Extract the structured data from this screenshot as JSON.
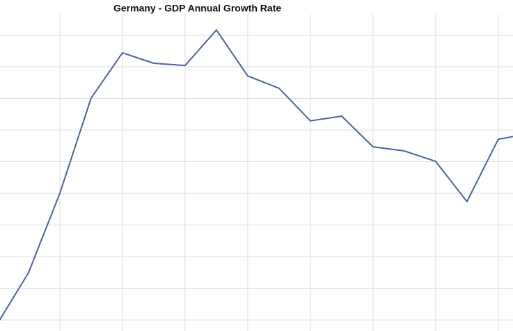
{
  "chart_data": {
    "type": "line",
    "title": "Germany - GDP Annual Growth Rate",
    "x": [
      0,
      1,
      2,
      3,
      4,
      5,
      6,
      7,
      8,
      9,
      10,
      11,
      12,
      13,
      14,
      15,
      16,
      17
    ],
    "series": [
      {
        "color": "#4a62a0",
        "values": [
          -0.13,
          1.49,
          4.0,
          7.01,
          8.44,
          8.11,
          8.04,
          9.16,
          7.71,
          7.32,
          6.29,
          6.44,
          5.47,
          5.34,
          5.01,
          3.74,
          5.71,
          5.89
        ]
      }
    ],
    "xlim": [
      0.09,
      16.47
    ],
    "xticks": [
      2,
      4,
      6,
      8,
      10,
      12,
      14,
      16
    ],
    "ylim": [
      -0.35,
      9.67
    ],
    "yticks": [
      0,
      1,
      2,
      3,
      4,
      5,
      6,
      7,
      8,
      9
    ],
    "grid": true
  }
}
